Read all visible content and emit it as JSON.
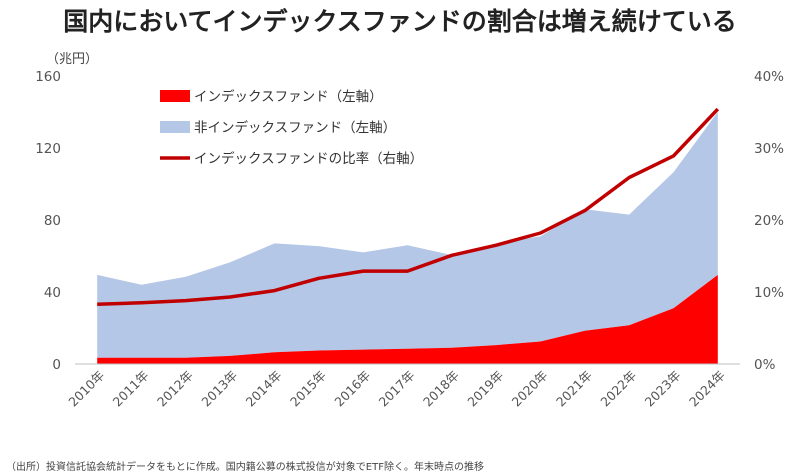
{
  "page": {
    "title": "国内においてインデックスファンドの割合は増え続けている",
    "unit_left": "（兆円）",
    "footnote": "（出所）投資信託協会統計データをもとに作成。国内籍公募の株式投信が対象でETF除く。年末時点の推移"
  },
  "colors": {
    "index": "#ff0000",
    "non_index": "#b4c7e7",
    "ratio_line": "#c00000",
    "axis": "#bfbfbf"
  },
  "chart_data": {
    "type": "area",
    "categories": [
      "2010年",
      "2011年",
      "2012年",
      "2013年",
      "2014年",
      "2015年",
      "2016年",
      "2017年",
      "2018年",
      "2019年",
      "2020年",
      "2021年",
      "2022年",
      "2023年",
      "2024年"
    ],
    "series": [
      {
        "name": "インデックスファンド（左軸）",
        "type": "area",
        "axis": "left",
        "stack": "total",
        "values": [
          3.5,
          3.5,
          3.5,
          4.5,
          6.5,
          7.5,
          8,
          8.5,
          9,
          10.5,
          12.5,
          18.5,
          21.5,
          31,
          49.5
        ]
      },
      {
        "name": "非インデックスファンド（左軸）",
        "type": "area",
        "axis": "left",
        "stack": "total",
        "values": [
          46,
          40.5,
          45,
          52,
          60.5,
          58,
          54,
          57.5,
          51.5,
          56.5,
          58.5,
          67.5,
          61.5,
          75.5,
          90.5
        ]
      },
      {
        "name": "インデックスファンドの比率（右軸）",
        "type": "line",
        "axis": "right",
        "values": [
          8.3,
          8.5,
          8.8,
          9.3,
          10.2,
          11.9,
          12.9,
          12.9,
          15.1,
          16.5,
          18.2,
          21.3,
          25.9,
          28.9,
          35.4
        ]
      }
    ],
    "yticks_left": [
      "0",
      "40",
      "80",
      "120",
      "160"
    ],
    "yticks_right": [
      "0%",
      "10%",
      "20%",
      "30%",
      "40%"
    ],
    "ylim_left": [
      0,
      160
    ],
    "ylim_right": [
      0,
      40
    ],
    "grid": false,
    "legend_position": "top-left"
  }
}
